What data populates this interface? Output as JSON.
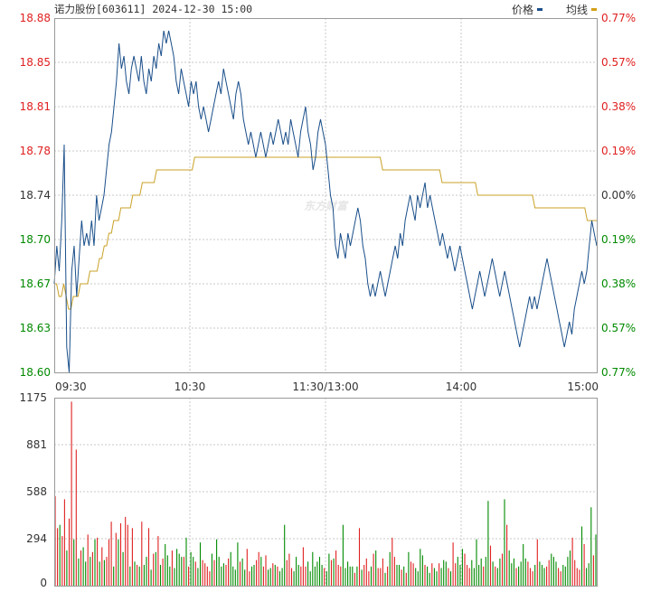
{
  "header": {
    "stock_name": "诺力股份",
    "stock_code": "[603611]",
    "datetime": "2024-12-30 15:00",
    "legend": [
      {
        "label": "价格",
        "color": "#1a4f8a"
      },
      {
        "label": "均线",
        "color": "#d4a017"
      }
    ]
  },
  "watermark": "东方财富",
  "colors": {
    "up": "#e02020",
    "down": "#008a00",
    "price_line": "#1a4f8a",
    "avg_line": "#c9a227",
    "grid": "#c8c8c8",
    "border": "#999999",
    "axis_text": "#333333"
  },
  "chart_data": [
    {
      "type": "line",
      "prev_close": 18.74,
      "ylim": [
        18.6,
        18.88
      ],
      "y_ticks_left": [
        "18.88",
        "18.85",
        "18.81",
        "18.78",
        "18.74",
        "18.70",
        "18.67",
        "18.63",
        "18.60"
      ],
      "y_ticks_right": [
        "0.77%",
        "0.57%",
        "0.38%",
        "0.19%",
        "0.00%",
        "0.19%",
        "0.38%",
        "0.57%",
        "0.77%"
      ],
      "x_ticks": [
        "09:30",
        "10:30",
        "11:30/13:00",
        "14:00",
        "15:00"
      ],
      "series": [
        {
          "name": "价格",
          "values": [
            18.67,
            18.7,
            18.68,
            18.72,
            18.78,
            18.62,
            18.6,
            18.68,
            18.7,
            18.66,
            18.69,
            18.72,
            18.7,
            18.71,
            18.7,
            18.72,
            18.7,
            18.74,
            18.72,
            18.73,
            18.74,
            18.76,
            18.78,
            18.79,
            18.81,
            18.83,
            18.86,
            18.84,
            18.85,
            18.83,
            18.82,
            18.84,
            18.85,
            18.84,
            18.83,
            18.85,
            18.83,
            18.82,
            18.84,
            18.83,
            18.85,
            18.84,
            18.86,
            18.85,
            18.87,
            18.86,
            18.87,
            18.86,
            18.85,
            18.83,
            18.82,
            18.84,
            18.83,
            18.82,
            18.81,
            18.83,
            18.82,
            18.83,
            18.81,
            18.8,
            18.81,
            18.8,
            18.79,
            18.8,
            18.81,
            18.82,
            18.83,
            18.82,
            18.84,
            18.83,
            18.82,
            18.81,
            18.8,
            18.82,
            18.83,
            18.82,
            18.8,
            18.79,
            18.78,
            18.79,
            18.78,
            18.77,
            18.78,
            18.79,
            18.78,
            18.77,
            18.78,
            18.79,
            18.78,
            18.79,
            18.8,
            18.79,
            18.78,
            18.79,
            18.78,
            18.8,
            18.79,
            18.78,
            18.77,
            18.79,
            18.8,
            18.81,
            18.79,
            18.78,
            18.76,
            18.77,
            18.79,
            18.8,
            18.79,
            18.78,
            18.76,
            18.74,
            18.73,
            18.7,
            18.69,
            18.71,
            18.7,
            18.69,
            18.71,
            18.7,
            18.71,
            18.72,
            18.73,
            18.72,
            18.7,
            18.69,
            18.67,
            18.66,
            18.67,
            18.66,
            18.67,
            18.68,
            18.67,
            18.66,
            18.67,
            18.68,
            18.69,
            18.7,
            18.69,
            18.71,
            18.7,
            18.72,
            18.73,
            18.74,
            18.73,
            18.72,
            18.74,
            18.73,
            18.74,
            18.75,
            18.73,
            18.74,
            18.73,
            18.72,
            18.71,
            18.7,
            18.71,
            18.7,
            18.69,
            18.7,
            18.69,
            18.68,
            18.69,
            18.7,
            18.69,
            18.68,
            18.67,
            18.66,
            18.65,
            18.66,
            18.67,
            18.68,
            18.67,
            18.66,
            18.67,
            18.68,
            18.69,
            18.68,
            18.67,
            18.66,
            18.67,
            18.68,
            18.67,
            18.66,
            18.65,
            18.64,
            18.63,
            18.62,
            18.63,
            18.64,
            18.65,
            18.66,
            18.65,
            18.66,
            18.65,
            18.66,
            18.67,
            18.68,
            18.69,
            18.68,
            18.67,
            18.66,
            18.65,
            18.64,
            18.63,
            18.62,
            18.63,
            18.64,
            18.63,
            18.65,
            18.66,
            18.67,
            18.68,
            18.67,
            18.68,
            18.7,
            18.72,
            18.71,
            18.7
          ]
        },
        {
          "name": "均线",
          "values": [
            18.67,
            18.67,
            18.66,
            18.66,
            18.67,
            18.66,
            18.65,
            18.65,
            18.66,
            18.66,
            18.66,
            18.67,
            18.67,
            18.67,
            18.67,
            18.68,
            18.68,
            18.68,
            18.68,
            18.69,
            18.69,
            18.7,
            18.7,
            18.71,
            18.71,
            18.72,
            18.72,
            18.72,
            18.73,
            18.73,
            18.73,
            18.73,
            18.73,
            18.74,
            18.74,
            18.74,
            18.74,
            18.75,
            18.75,
            18.75,
            18.75,
            18.75,
            18.75,
            18.76,
            18.76,
            18.76,
            18.76,
            18.76,
            18.76,
            18.76,
            18.76,
            18.76,
            18.76,
            18.76,
            18.76,
            18.76,
            18.76,
            18.76,
            18.76,
            18.77,
            18.77,
            18.77,
            18.77,
            18.77,
            18.77,
            18.77,
            18.77,
            18.77,
            18.77,
            18.77,
            18.77,
            18.77,
            18.77,
            18.77,
            18.77,
            18.77,
            18.77,
            18.77,
            18.77,
            18.77,
            18.77,
            18.77,
            18.77,
            18.77,
            18.77,
            18.77,
            18.77,
            18.77,
            18.77,
            18.77,
            18.77,
            18.77,
            18.77,
            18.77,
            18.77,
            18.77,
            18.77,
            18.77,
            18.77,
            18.77,
            18.77,
            18.77,
            18.77,
            18.77,
            18.77,
            18.77,
            18.77,
            18.77,
            18.77,
            18.77,
            18.77,
            18.77,
            18.77,
            18.77,
            18.77,
            18.77,
            18.77,
            18.77,
            18.77,
            18.77,
            18.77,
            18.77,
            18.77,
            18.77,
            18.77,
            18.77,
            18.77,
            18.77,
            18.77,
            18.77,
            18.77,
            18.77,
            18.77,
            18.77,
            18.77,
            18.77,
            18.77,
            18.77,
            18.76,
            18.76,
            18.76,
            18.76,
            18.76,
            18.76,
            18.76,
            18.76,
            18.76,
            18.76,
            18.76,
            18.76,
            18.76,
            18.76,
            18.76,
            18.76,
            18.76,
            18.76,
            18.76,
            18.76,
            18.76,
            18.76,
            18.76,
            18.76,
            18.76,
            18.75,
            18.75,
            18.75,
            18.75,
            18.75,
            18.75,
            18.75,
            18.75,
            18.75,
            18.75,
            18.75,
            18.75,
            18.75,
            18.75,
            18.75,
            18.74,
            18.74,
            18.74,
            18.74,
            18.74,
            18.74,
            18.74,
            18.74,
            18.74,
            18.74,
            18.74,
            18.74,
            18.74,
            18.74,
            18.74,
            18.74,
            18.74,
            18.74,
            18.74,
            18.74,
            18.74,
            18.74,
            18.74,
            18.74,
            18.73,
            18.73,
            18.73,
            18.73,
            18.73,
            18.73,
            18.73,
            18.73,
            18.73,
            18.73,
            18.73,
            18.73,
            18.73,
            18.73,
            18.73,
            18.73,
            18.73,
            18.73,
            18.73,
            18.73,
            18.73,
            18.73,
            18.72,
            18.72,
            18.72,
            18.72,
            18.72
          ]
        }
      ]
    },
    {
      "type": "bar",
      "ylim": [
        0,
        1175
      ],
      "y_ticks": [
        "1175",
        "881",
        "588",
        "294",
        "0"
      ],
      "series": [
        {
          "name": "成交量",
          "values": [
            560,
            360,
            380,
            310,
            540,
            220,
            420,
            1150,
            290,
            850,
            170,
            220,
            240,
            150,
            320,
            180,
            210,
            290,
            300,
            150,
            240,
            160,
            180,
            290,
            400,
            120,
            330,
            290,
            390,
            210,
            430,
            380,
            120,
            360,
            150,
            130,
            120,
            400,
            130,
            180,
            360,
            100,
            200,
            210,
            310,
            130,
            170,
            260,
            190,
            120,
            220,
            110,
            230,
            200,
            180,
            180,
            300,
            120,
            210,
            180,
            150,
            110,
            270,
            160,
            140,
            120,
            90,
            200,
            160,
            290,
            180,
            120,
            140,
            130,
            170,
            210,
            120,
            100,
            270,
            150,
            170,
            100,
            230,
            90,
            120,
            130,
            160,
            210,
            180,
            120,
            190,
            100,
            110,
            140,
            130,
            120,
            90,
            110,
            380,
            160,
            200,
            110,
            90,
            180,
            130,
            120,
            240,
            120,
            150,
            90,
            210,
            120,
            150,
            180,
            130,
            110,
            90,
            200,
            160,
            170,
            220,
            130,
            120,
            380,
            110,
            150,
            120,
            120,
            80,
            120,
            360,
            100,
            130,
            170,
            90,
            120,
            200,
            220,
            110,
            110,
            170,
            80,
            120,
            210,
            300,
            180,
            130,
            130,
            100,
            120,
            80,
            210,
            150,
            140,
            110,
            90,
            230,
            190,
            130,
            120,
            80,
            140,
            110,
            90,
            140,
            110,
            160,
            150,
            110,
            90,
            270,
            140,
            180,
            130,
            230,
            200,
            130,
            110,
            160,
            110,
            290,
            130,
            170,
            120,
            180,
            530,
            250,
            150,
            120,
            110,
            170,
            200,
            540,
            380,
            220,
            140,
            170,
            110,
            120,
            150,
            260,
            170,
            150,
            110,
            90,
            130,
            290,
            150,
            130,
            110,
            120,
            160,
            200,
            180,
            150,
            110,
            90,
            130,
            120,
            180,
            220,
            300,
            160,
            110,
            100,
            370,
            260,
            110,
            140,
            490,
            190,
            320
          ]
        },
        {
          "name": "direction",
          "values": [
            1,
            1,
            0,
            1,
            1,
            0,
            1,
            1,
            0,
            1,
            0,
            1,
            0,
            0,
            1,
            0,
            1,
            0,
            1,
            0,
            1,
            0,
            1,
            1,
            1,
            0,
            1,
            0,
            1,
            0,
            1,
            1,
            0,
            1,
            0,
            1,
            0,
            1,
            0,
            0,
            1,
            0,
            1,
            0,
            1,
            0,
            1,
            0,
            0,
            0,
            1,
            0,
            0,
            0,
            0,
            1,
            0,
            1,
            0,
            0,
            1,
            0,
            0,
            1,
            1,
            1,
            1,
            0,
            1,
            0,
            0,
            0,
            0,
            1,
            1,
            0,
            0,
            0,
            0,
            1,
            0,
            0,
            1,
            1,
            0,
            0,
            1,
            1,
            0,
            1,
            1,
            0,
            0,
            1,
            0,
            1,
            0,
            0,
            0,
            1,
            1,
            1,
            0,
            0,
            0,
            1,
            1,
            1,
            0,
            0,
            0,
            0,
            0,
            0,
            0,
            1,
            0,
            0,
            1,
            0,
            1,
            1,
            1,
            0,
            0,
            0,
            0,
            0,
            1,
            0,
            1,
            0,
            1,
            1,
            1,
            0,
            1,
            0,
            1,
            1,
            1,
            0,
            1,
            0,
            1,
            1,
            0,
            0,
            1,
            0,
            1,
            0,
            1,
            1,
            0,
            0,
            0,
            0,
            1,
            0,
            0,
            1,
            0,
            0,
            1,
            0,
            0,
            0,
            1,
            0,
            1,
            1,
            0,
            0,
            0,
            1,
            1,
            1,
            0,
            0,
            0,
            0,
            0,
            1,
            0,
            0,
            1,
            0,
            1,
            0,
            0,
            1,
            0,
            1,
            0,
            0,
            0,
            1,
            0,
            0,
            0,
            0,
            1,
            1,
            1,
            0,
            1,
            0,
            0,
            0,
            1,
            1,
            0,
            0,
            0,
            1,
            1,
            0,
            0,
            0,
            0,
            1,
            1,
            1,
            1,
            0,
            1,
            0,
            0,
            0,
            1,
            0,
            0,
            1,
            0,
            1,
            1,
            0
          ]
        }
      ]
    }
  ]
}
